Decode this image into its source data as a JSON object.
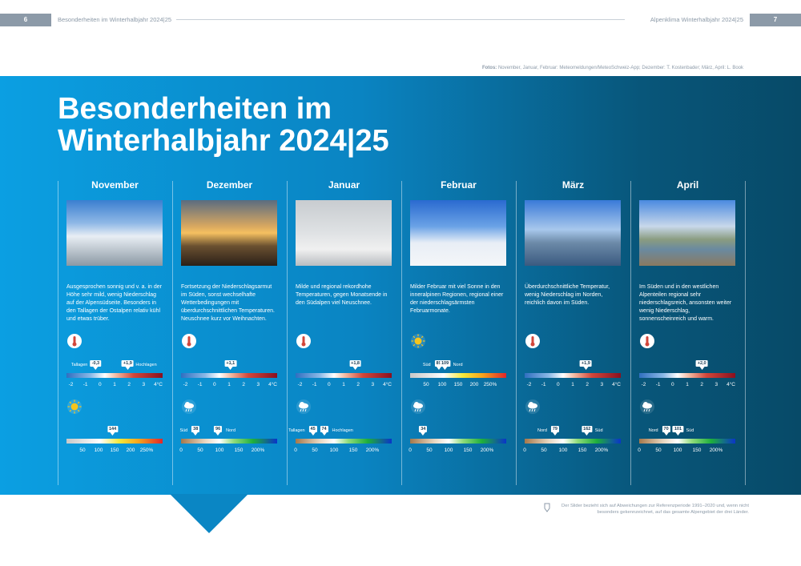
{
  "header": {
    "left_page": "6",
    "left_title": "Besonderheiten im Winterhalbjahr 2024|25",
    "right_title": "Alpenklima Winterhalbjahr 2024|25",
    "right_page": "7"
  },
  "credits": {
    "label": "Fotos:",
    "text": "November, Januar, Februar: Meteomeldungen/MeteoSchweiz-App; Dezember: T. Kostenbader; März, April: L. Book"
  },
  "title_lines": [
    "Besonderheiten im",
    "Winterhalbjahr 2024|25"
  ],
  "scales": {
    "temperature": {
      "lim": [
        -2.3,
        4.3
      ],
      "ticks": [
        -2,
        -1,
        0,
        1,
        2,
        3,
        {
          "value": 4,
          "label": "4°C"
        }
      ]
    },
    "sunshine": {
      "lim": [
        0,
        300
      ],
      "ticks": [
        50,
        100,
        150,
        200,
        {
          "value": 250,
          "label": "250%"
        }
      ]
    },
    "precipitation": {
      "lim": [
        0,
        250
      ],
      "ticks": [
        0,
        50,
        100,
        150,
        {
          "value": 200,
          "label": "200%"
        }
      ]
    }
  },
  "months": [
    {
      "name": "November",
      "text": "Ausgesprochen sonnig und v. a. in der Höhe sehr mild, wenig Niederschlag auf der Alpensüdseite. Besonders in den Tallagen der Ostalpen relativ kühl und etwas trüber.",
      "indicators": [
        {
          "kind": "temperature",
          "markers": [
            {
              "value": -0.3,
              "label": "-0,3",
              "side": "Tallagen"
            },
            {
              "value": 1.9,
              "label": "+1,9",
              "side": "Hochlagen"
            }
          ]
        },
        {
          "kind": "sunshine",
          "markers": [
            {
              "value": 144
            }
          ]
        }
      ]
    },
    {
      "name": "Dezember",
      "text": "Fortsetzung der Niederschlagsarmut im Süden, sonst wechselhafte Wetterbedingungen mit überdurchschnittlichen Temperaturen. Neuschnee kurz vor Weihnachten.",
      "indicators": [
        {
          "kind": "temperature",
          "markers": [
            {
              "value": 1.1,
              "label": "+1,1"
            }
          ]
        },
        {
          "kind": "precipitation",
          "markers": [
            {
              "value": 38,
              "side": "Süd"
            },
            {
              "value": 96,
              "side": "Nord"
            }
          ]
        }
      ]
    },
    {
      "name": "Januar",
      "text": "Milde und regional rekordhohe Temperaturen, gegen Monatsende in den Südalpen viel Neuschnee.",
      "indicators": [
        {
          "kind": "temperature",
          "markers": [
            {
              "value": 1.8,
              "label": "+1,8"
            }
          ]
        },
        {
          "kind": "precipitation",
          "markers": [
            {
              "value": 45,
              "side": "Tallagen"
            },
            {
              "value": 74,
              "side": "Hochlagen"
            }
          ]
        }
      ]
    },
    {
      "name": "Februar",
      "text": "Milder Februar mit viel Sonne in den inneralpinen Regionen, regional einer der niederschlagsärmsten Februarmonate.",
      "indicators": [
        {
          "kind": "sunshine",
          "markers": [
            {
              "value": 89,
              "side": "Süd"
            },
            {
              "value": 109,
              "side": "Nord"
            }
          ]
        },
        {
          "kind": "precipitation",
          "markers": [
            {
              "value": 34
            }
          ]
        }
      ]
    },
    {
      "name": "März",
      "text": "Überdurchschnittliche Temperatur, wenig Niederschlag im Norden, reichlich davon im Süden.",
      "indicators": [
        {
          "kind": "temperature",
          "markers": [
            {
              "value": 1.9,
              "label": "+1,9"
            }
          ]
        },
        {
          "kind": "precipitation",
          "markers": [
            {
              "value": 79,
              "side": "Nord"
            },
            {
              "value": 162,
              "side": "Süd"
            }
          ]
        }
      ]
    },
    {
      "name": "April",
      "text": "Im Süden und in den westlichen Alpenteilen regional sehr niederschlagsreich, ansonsten weiter wenig Niederschlag, sonnenscheinreich und warm.",
      "indicators": [
        {
          "kind": "temperature",
          "markers": [
            {
              "value": 2.0,
              "label": "+2,0"
            }
          ]
        },
        {
          "kind": "precipitation",
          "markers": [
            {
              "value": 70,
              "side": "Nord"
            },
            {
              "value": 101,
              "side": "Süd"
            }
          ]
        }
      ]
    }
  ],
  "footnote": "Der Slider bezieht sich auf Abweichungen zur Referenzperiode 1991–2020 und, wenn nicht besonders gekennzeichnet, auf das gesamte Alpengebiet der drei Länder."
}
